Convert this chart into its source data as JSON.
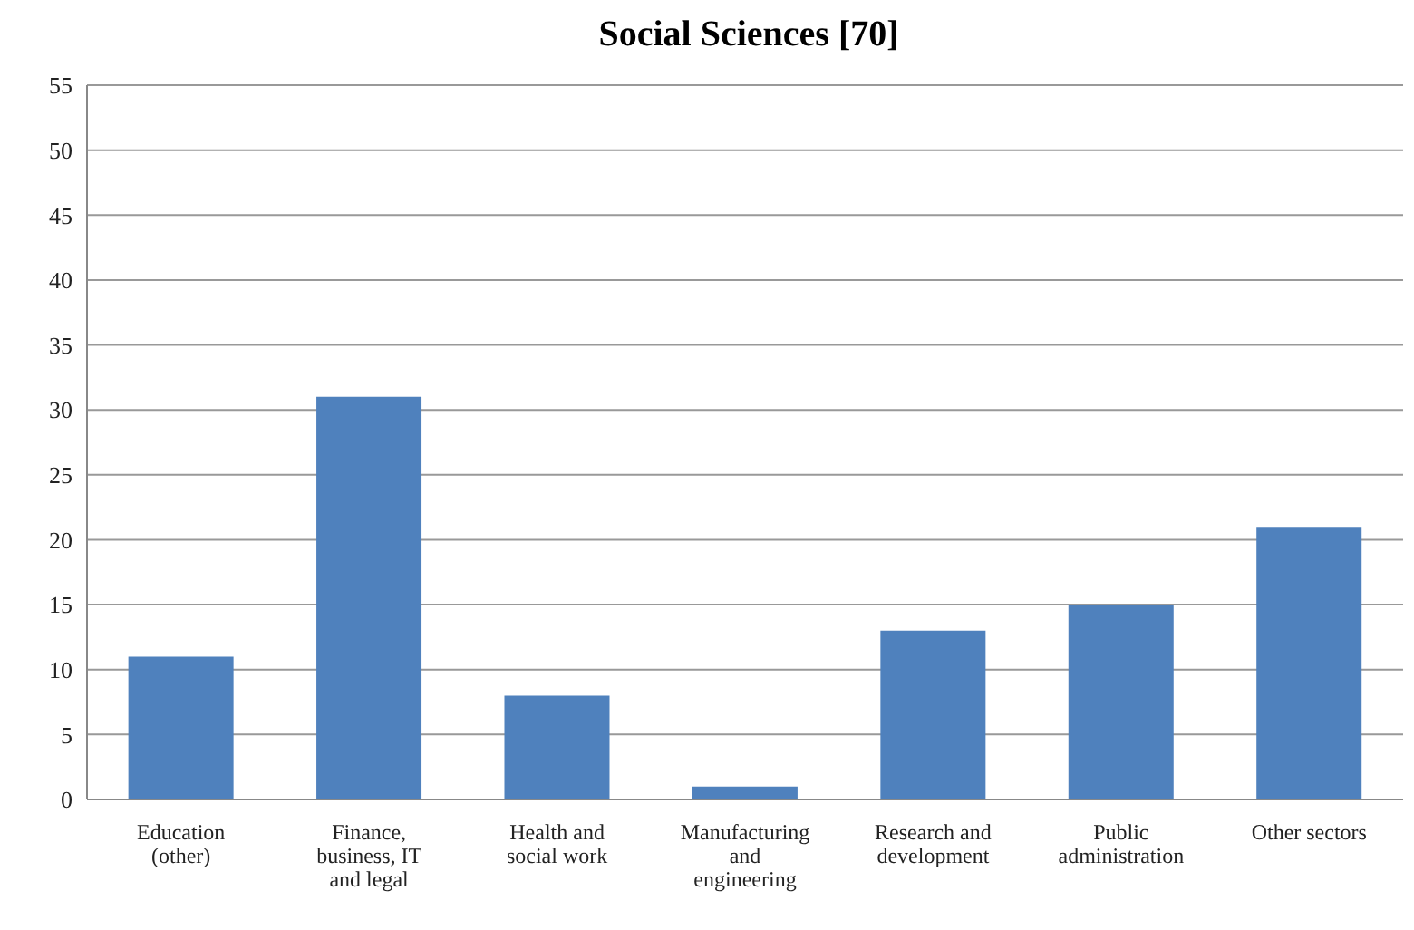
{
  "chart_data": {
    "type": "bar",
    "title": "Social Sciences [70]",
    "categories": [
      "Education (other)",
      "Finance, business, IT and legal",
      "Health and social work",
      "Manufacturing and engineering",
      "Research and development",
      "Public administration",
      "Other sectors"
    ],
    "values": [
      11,
      31,
      8,
      1,
      13,
      15,
      21
    ],
    "color": "#4f81bd",
    "ylim": [
      0,
      55
    ],
    "yticks": [
      0,
      5,
      10,
      15,
      20,
      25,
      30,
      35,
      40,
      45,
      50,
      55
    ],
    "grid": "y"
  }
}
